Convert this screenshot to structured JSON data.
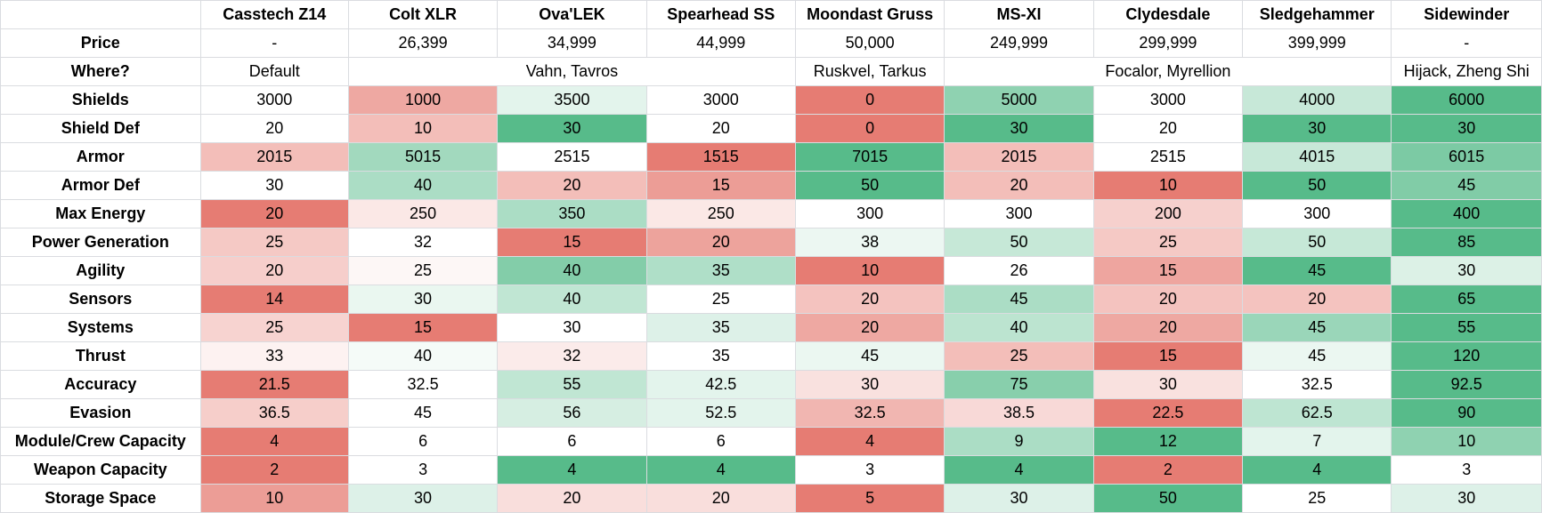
{
  "chart_data": {
    "type": "table",
    "columns": [
      "Casstech Z14",
      "Colt XLR",
      "Ova'LEK",
      "Spearhead SS",
      "Moondast Gruss",
      "MS-XI",
      "Clydesdale",
      "Sledgehammer",
      "Sidewinder"
    ],
    "price": {
      "label": "Price",
      "values": [
        "-",
        "26,399",
        "34,999",
        "44,999",
        "50,000",
        "249,999",
        "299,999",
        "399,999",
        "-"
      ]
    },
    "where": {
      "label": "Where?",
      "groups": [
        {
          "text": "Default",
          "span": 1
        },
        {
          "text": "Vahn, Tavros",
          "span": 3
        },
        {
          "text": "Ruskvel, Tarkus",
          "span": 1
        },
        {
          "text": "Focalor, Myrellion",
          "span": 3
        },
        {
          "text": "Hijack, Zheng Shi",
          "span": 1
        }
      ]
    },
    "stats": [
      {
        "label": "Shields",
        "values": [
          3000,
          1000,
          3500,
          3000,
          0,
          5000,
          3000,
          4000,
          6000
        ]
      },
      {
        "label": "Shield Def",
        "values": [
          20,
          10,
          30,
          20,
          0,
          30,
          20,
          30,
          30
        ]
      },
      {
        "label": "Armor",
        "values": [
          2015,
          5015,
          2515,
          1515,
          7015,
          2015,
          2515,
          4015,
          6015
        ]
      },
      {
        "label": "Armor Def",
        "values": [
          30,
          40,
          20,
          15,
          50,
          20,
          10,
          50,
          45
        ]
      },
      {
        "label": "Max Energy",
        "values": [
          20,
          250,
          350,
          250,
          300,
          300,
          200,
          300,
          400
        ]
      },
      {
        "label": "Power Generation",
        "values": [
          25,
          32,
          15,
          20,
          38,
          50,
          25,
          50,
          85
        ]
      },
      {
        "label": "Agility",
        "values": [
          20,
          25,
          40,
          35,
          10,
          26,
          15,
          45,
          30
        ]
      },
      {
        "label": "Sensors",
        "values": [
          14,
          30,
          40,
          25,
          20,
          45,
          20,
          20,
          65
        ]
      },
      {
        "label": "Systems",
        "values": [
          25,
          15,
          30,
          35,
          20,
          40,
          20,
          45,
          55
        ]
      },
      {
        "label": "Thrust",
        "values": [
          33,
          40,
          32,
          35,
          45,
          25,
          15,
          45,
          120
        ]
      },
      {
        "label": "Accuracy",
        "values": [
          21.5,
          32.5,
          55,
          42.5,
          30,
          75,
          30,
          32.5,
          92.5
        ]
      },
      {
        "label": "Evasion",
        "values": [
          36.5,
          45,
          56,
          52.5,
          32.5,
          38.5,
          22.5,
          62.5,
          90
        ]
      },
      {
        "label": "Module/Crew Capacity",
        "values": [
          4,
          6,
          6,
          6,
          4,
          9,
          12,
          7,
          10
        ]
      },
      {
        "label": "Weapon Capacity",
        "values": [
          2,
          3,
          4,
          4,
          3,
          4,
          2,
          4,
          3
        ]
      },
      {
        "label": "Storage Space",
        "values": [
          10,
          30,
          20,
          20,
          5,
          30,
          50,
          25,
          30
        ]
      }
    ]
  },
  "colors": {
    "low": "#e67c73",
    "mid": "#ffffff",
    "high": "#57bb8a",
    "grid": "#dadce0"
  }
}
